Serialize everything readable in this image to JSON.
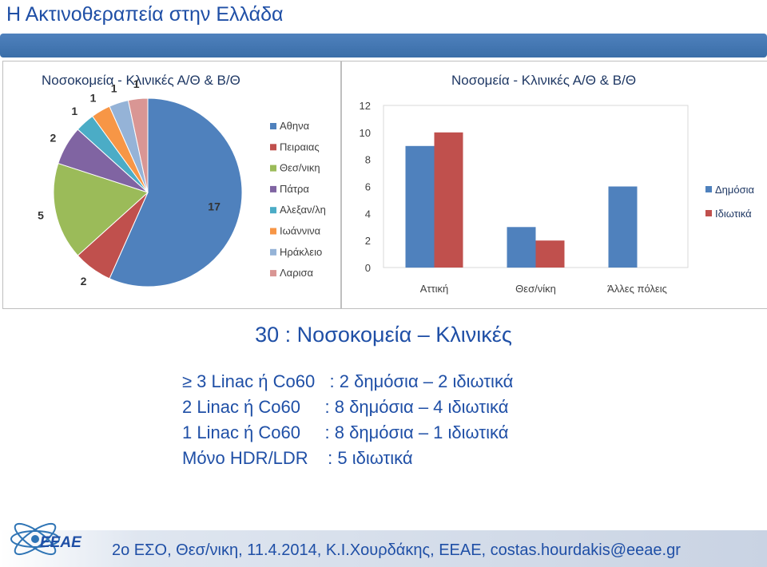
{
  "title": "Η Ακτινοθεραπεία στην Ελλάδα",
  "chart_data": [
    {
      "type": "pie",
      "title": "Νοσοκομεία - Κλινικές Α/Θ & Β/Θ",
      "categories": [
        "Αθηνα",
        "Πειραιας",
        "Θεσ/νικη",
        "Πάτρα",
        "Αλεξαν/λη",
        "Ιωάννινα",
        "Ηράκλειο",
        "Λαρισα"
      ],
      "values": [
        17,
        2,
        5,
        2,
        1,
        1,
        1,
        1
      ],
      "labels": [
        "17",
        "2",
        "5",
        "2",
        "1",
        "1",
        "1",
        "1"
      ],
      "colors": [
        "#4f81bd",
        "#c0504d",
        "#9bbb59",
        "#8064a2",
        "#4bacc6",
        "#f79646",
        "#95b3d7",
        "#d99694"
      ],
      "legend": "right"
    },
    {
      "type": "bar",
      "title": "Νοσομεία - Κλινικές Α/Θ & Β/Θ",
      "categories": [
        "Αττική",
        "Θεσ/νίκη",
        "Άλλες πόλεις"
      ],
      "series": [
        {
          "name": "Δημόσια",
          "values": [
            9,
            3,
            6
          ],
          "color": "#4f81bd"
        },
        {
          "name": "Ιδιωτικά",
          "values": [
            10,
            2,
            0
          ],
          "color": "#c0504d"
        }
      ],
      "ylim": [
        0,
        12
      ],
      "yticks": [
        "0",
        "2",
        "4",
        "6",
        "8",
        "10",
        "12"
      ],
      "legend": "right"
    }
  ],
  "summary": {
    "heading": "30 : Νοσοκομεία – Κλινικές",
    "lines": [
      "≥ 3 Linac ή Co60   : 2 δημόσια – 2 ιδιωτικά",
      "2 Linac ή Co60     : 8 δημόσια – 4 ιδιωτικά",
      "1 Linac ή Co60     : 8 δημόσια – 1 ιδιωτικά",
      "Μόνο HDR/LDR    : 5 ιδιωτικά"
    ]
  },
  "footer": {
    "logo_text": "ΕΕΑΕ",
    "text": "2ο ΕΣΟ, Θεσ/νικη, 11.4.2014, Κ.Ι.Χουρδάκης, ΕΕΑΕ, costas.hourdakis@eeae.gr"
  }
}
